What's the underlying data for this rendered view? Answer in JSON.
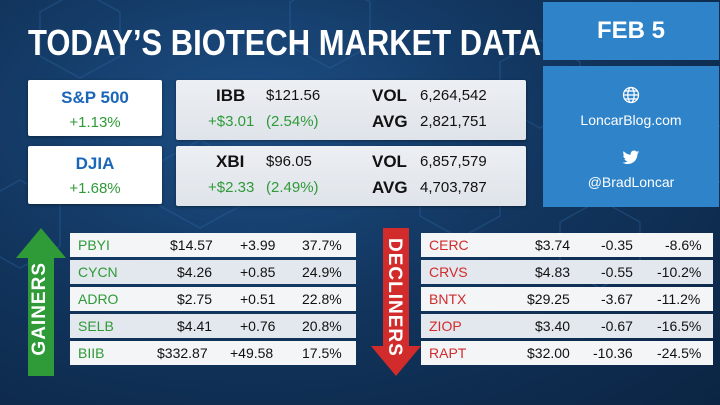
{
  "title": "TODAY’S BIOTECH MARKET DATA",
  "date": "FEB 5",
  "social": {
    "website": "LoncarBlog.com",
    "twitter": "@BradLoncar",
    "website_icon": "globe-icon",
    "twitter_icon": "twitter-bird-icon"
  },
  "indices": [
    {
      "name": "S&P 500",
      "change": "+1.13%"
    },
    {
      "name": "DJIA",
      "change": "+1.68%"
    }
  ],
  "etfs": [
    {
      "ticker": "IBB",
      "price": "$121.56",
      "change": "+$3.01",
      "pct": "(2.54%)",
      "vol_label": "VOL",
      "vol": "6,264,542",
      "avg_label": "AVG",
      "avg": "2,821,751"
    },
    {
      "ticker": "XBI",
      "price": "$96.05",
      "change": "+$2.33",
      "pct": "(2.49%)",
      "vol_label": "VOL",
      "vol": "6,857,579",
      "avg_label": "AVG",
      "avg": "4,703,787"
    }
  ],
  "gainers_label": "GAINERS",
  "decliners_label": "DECLINERS",
  "gainers": [
    {
      "ticker": "PBYI",
      "price": "$14.57",
      "change": "+3.99",
      "pct": "37.7%"
    },
    {
      "ticker": "CYCN",
      "price": "$4.26",
      "change": "+0.85",
      "pct": "24.9%"
    },
    {
      "ticker": "ADRO",
      "price": "$2.75",
      "change": "+0.51",
      "pct": "22.8%"
    },
    {
      "ticker": "SELB",
      "price": "$4.41",
      "change": "+0.76",
      "pct": "20.8%"
    },
    {
      "ticker": "BIIB",
      "price": "$332.87",
      "change": "+49.58",
      "pct": "17.5%"
    }
  ],
  "decliners": [
    {
      "ticker": "CERC",
      "price": "$3.74",
      "change": "-0.35",
      "pct": "-8.6%"
    },
    {
      "ticker": "CRVS",
      "price": "$4.83",
      "change": "-0.55",
      "pct": "-10.2%"
    },
    {
      "ticker": "BNTX",
      "price": "$29.25",
      "change": "-3.67",
      "pct": "-11.2%"
    },
    {
      "ticker": "ZIOP",
      "price": "$3.40",
      "change": "-0.67",
      "pct": "-16.5%"
    },
    {
      "ticker": "RAPT",
      "price": "$32.00",
      "change": "-10.36",
      "pct": "-24.5%"
    }
  ],
  "colors": {
    "positive": "#2f9a38",
    "negative": "#d22b2b",
    "accent": "#2e83c9"
  }
}
